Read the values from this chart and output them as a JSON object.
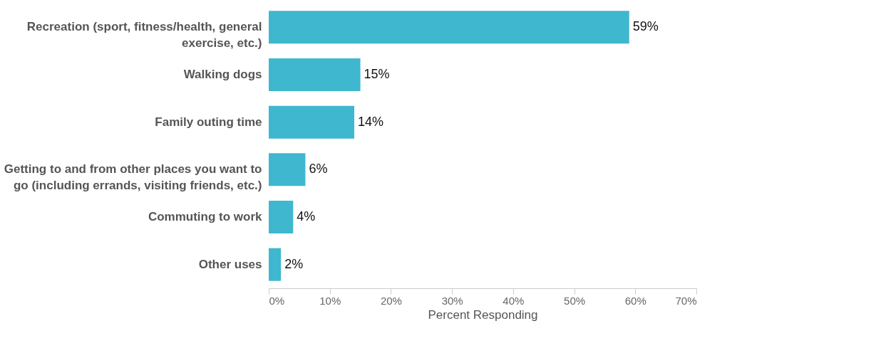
{
  "chart_data": {
    "type": "bar",
    "orientation": "horizontal",
    "xlabel": "Percent Responding",
    "categories": [
      "Recreation (sport, fitness/health, general exercise, etc.)",
      "Walking dogs",
      "Family outing time",
      "Getting to and from other places you want to go (including errands, visiting friends, etc.)",
      "Commuting to work",
      "Other uses"
    ],
    "values": [
      59,
      15,
      14,
      6,
      4,
      2
    ],
    "color": "#3fb7cf",
    "value_labels": [
      "59%",
      "15%",
      "14%",
      "6%",
      "4%",
      "2%"
    ],
    "xlim": [
      0,
      70
    ],
    "xticks": [
      {
        "value": 0,
        "label": "0%"
      },
      {
        "value": 10,
        "label": "10%"
      },
      {
        "value": 20,
        "label": "20%"
      },
      {
        "value": 30,
        "label": "30%"
      },
      {
        "value": 40,
        "label": "40%"
      },
      {
        "value": 50,
        "label": "50%"
      },
      {
        "value": 60,
        "label": "60%"
      },
      {
        "value": 70,
        "label": "70%"
      }
    ],
    "grid": false
  }
}
